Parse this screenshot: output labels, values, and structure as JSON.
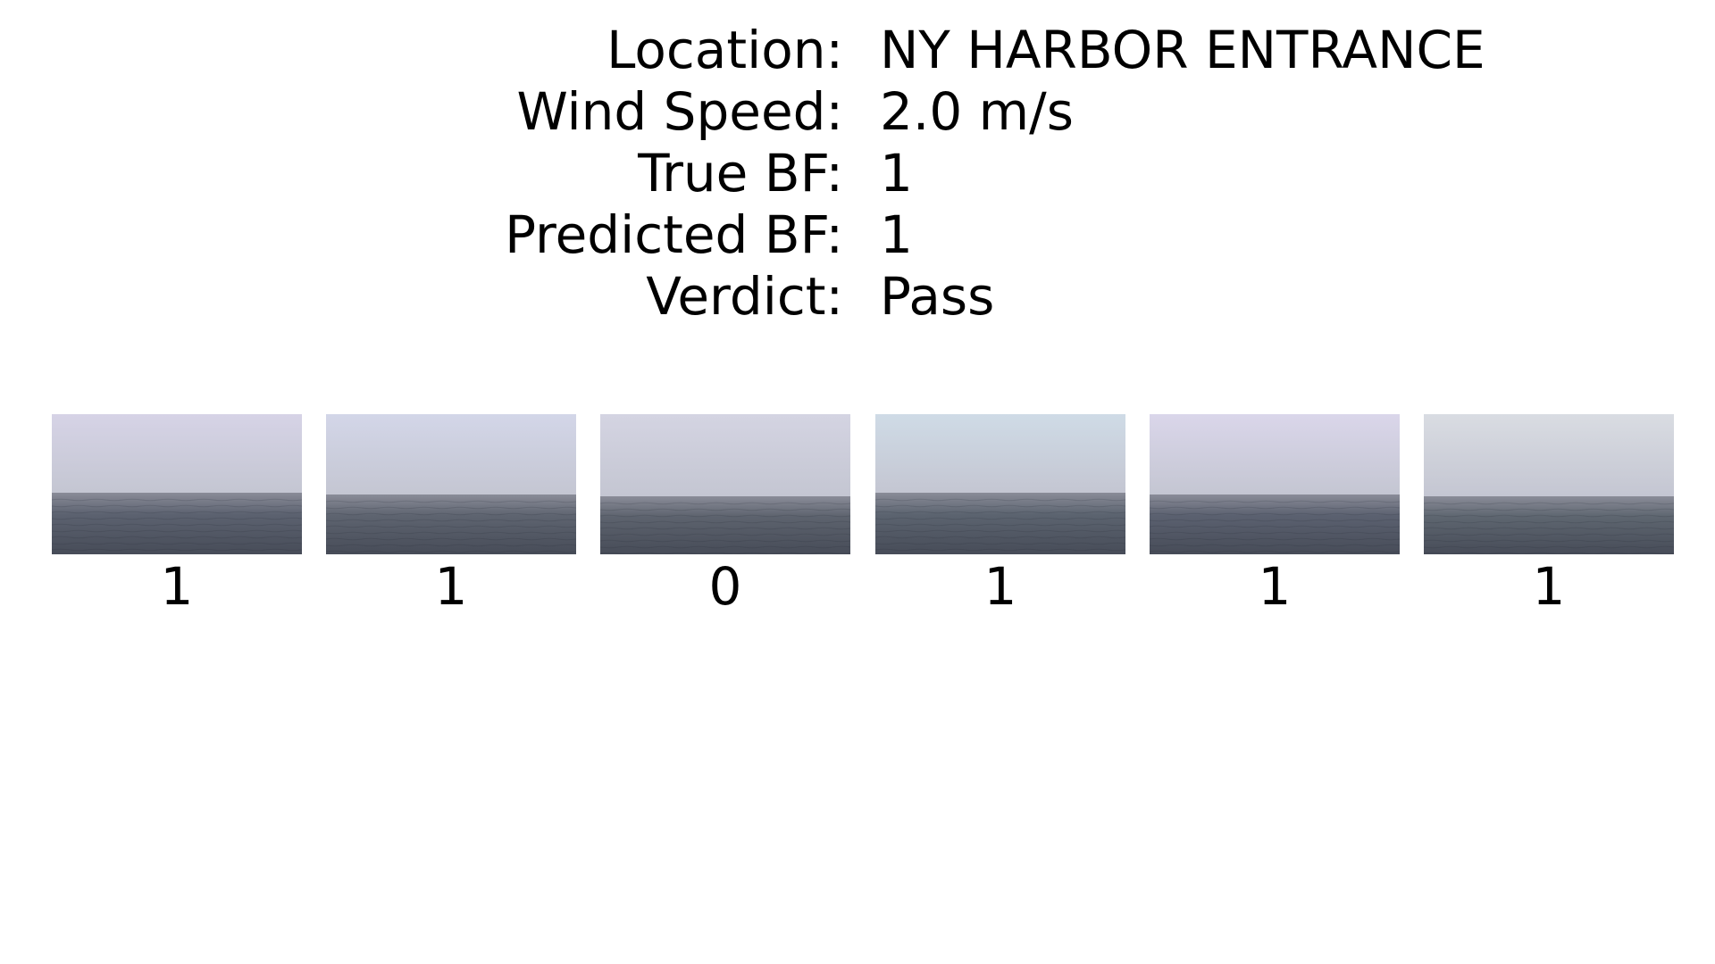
{
  "info": [
    {
      "label": "Location:",
      "value": "NY HARBOR ENTRANCE"
    },
    {
      "label": "Wind Speed:",
      "value": "2.0 m/s"
    },
    {
      "label": "True BF:",
      "value": "1"
    },
    {
      "label": "Predicted BF:",
      "value": "1"
    },
    {
      "label": "Verdict:",
      "value": "Pass"
    }
  ],
  "frames": [
    {
      "label": "1",
      "sky_color": "#d6d3e6",
      "sea_color": "#5c6270"
    },
    {
      "label": "1",
      "sky_color": "#d3d6e8",
      "sea_color": "#5e6470"
    },
    {
      "label": "0",
      "sky_color": "#d4d4e2",
      "sea_color": "#5d636e"
    },
    {
      "label": "1",
      "sky_color": "#cfdbe6",
      "sea_color": "#5c6470"
    },
    {
      "label": "1",
      "sky_color": "#dad6ea",
      "sea_color": "#5b6170"
    },
    {
      "label": "1",
      "sky_color": "#d9dce2",
      "sea_color": "#5e6670"
    }
  ]
}
